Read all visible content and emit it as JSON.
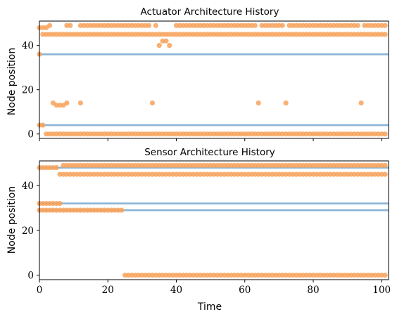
{
  "chart_data": [
    {
      "type": "scatter",
      "title": "Actuator Architecture History",
      "xlabel": "",
      "ylabel": "Node position",
      "xlim": [
        0,
        102
      ],
      "ylim": [
        -2,
        51
      ],
      "xticks": [
        0,
        20,
        40,
        60,
        80,
        100
      ],
      "yticks": [
        0,
        20,
        40
      ],
      "show_xticklabels": false,
      "grid": false,
      "colors": {
        "line": "#8ab4d8",
        "point": "#f7a25a"
      },
      "hlines": [
        4,
        36
      ],
      "points": {
        "rows": [
          {
            "y": 49,
            "from": 8,
            "to": 101,
            "skip": [
              10,
              11,
              33,
              35,
              36,
              37,
              38,
              39,
              64,
              72,
              94
            ]
          },
          {
            "y": 45,
            "from": 1,
            "to": 101,
            "skip": []
          },
          {
            "y": 0,
            "from": 2,
            "to": 101,
            "skip": []
          }
        ],
        "extra": [
          [
            0,
            48
          ],
          [
            1,
            48
          ],
          [
            2,
            48
          ],
          [
            3,
            49
          ],
          [
            0,
            36
          ],
          [
            0,
            4
          ],
          [
            1,
            4
          ],
          [
            35,
            40
          ],
          [
            36,
            42
          ],
          [
            37,
            42
          ],
          [
            38,
            40
          ],
          [
            4,
            14
          ],
          [
            5,
            13
          ],
          [
            6,
            13
          ],
          [
            7,
            13
          ],
          [
            8,
            14
          ],
          [
            12,
            14
          ],
          [
            33,
            14
          ],
          [
            64,
            14
          ],
          [
            72,
            14
          ],
          [
            94,
            14
          ]
        ]
      }
    },
    {
      "type": "scatter",
      "title": "Sensor Architecture History",
      "xlabel": "Time",
      "ylabel": "Node position",
      "xlim": [
        0,
        102
      ],
      "ylim": [
        -2,
        51
      ],
      "xticks": [
        0,
        20,
        40,
        60,
        80,
        100
      ],
      "yticks": [
        0,
        20,
        40
      ],
      "show_xticklabels": true,
      "grid": false,
      "colors": {
        "line": "#8ab4d8",
        "point": "#f7a25a"
      },
      "hlines": [
        29,
        32,
        48
      ],
      "points": {
        "rows": [
          {
            "y": 49,
            "from": 7,
            "to": 101,
            "skip": []
          },
          {
            "y": 48,
            "from": 0,
            "to": 5,
            "skip": []
          },
          {
            "y": 45,
            "from": 6,
            "to": 101,
            "skip": []
          },
          {
            "y": 32,
            "from": 0,
            "to": 6,
            "skip": []
          },
          {
            "y": 29,
            "from": 0,
            "to": 24,
            "skip": []
          },
          {
            "y": 0,
            "from": 25,
            "to": 101,
            "skip": []
          }
        ],
        "extra": []
      }
    }
  ]
}
